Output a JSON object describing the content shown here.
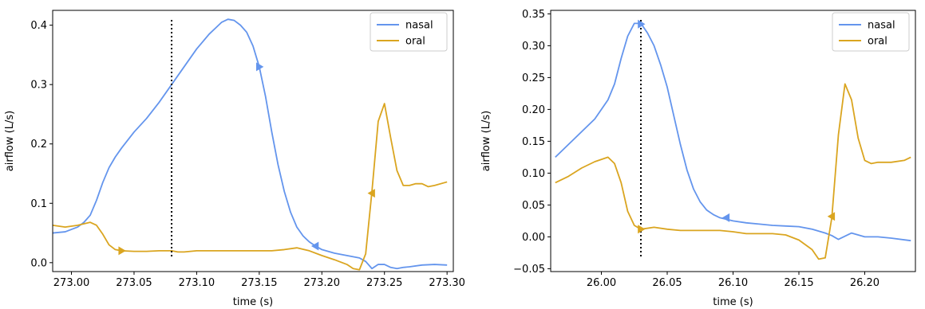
{
  "colors": {
    "nasal": "#6495ED",
    "oral": "#DAA520"
  },
  "chart_data": [
    {
      "type": "line",
      "xlabel": "time (s)",
      "ylabel": "airflow (L/s)",
      "xlim": [
        272.985,
        273.305
      ],
      "ylim": [
        -0.015,
        0.425
      ],
      "xticks": [
        273.0,
        273.05,
        273.1,
        273.15,
        273.2,
        273.25,
        273.3
      ],
      "xtick_labels": [
        "273.00",
        "273.05",
        "273.10",
        "273.15",
        "273.20",
        "273.25",
        "273.30"
      ],
      "yticks": [
        0.0,
        0.1,
        0.2,
        0.3,
        0.4
      ],
      "ytick_labels": [
        "0.0",
        "0.1",
        "0.2",
        "0.3",
        "0.4"
      ],
      "vline_x": 273.08,
      "legend": "top-right",
      "series": [
        {
          "name": "nasal",
          "color": "#6495ED",
          "x": [
            272.985,
            272.995,
            273.005,
            273.01,
            273.015,
            273.02,
            273.025,
            273.03,
            273.035,
            273.04,
            273.05,
            273.06,
            273.07,
            273.08,
            273.09,
            273.1,
            273.11,
            273.115,
            273.12,
            273.125,
            273.13,
            273.135,
            273.14,
            273.145,
            273.15,
            273.155,
            273.16,
            273.165,
            273.17,
            273.175,
            273.18,
            273.185,
            273.19,
            273.195,
            273.2,
            273.21,
            273.22,
            273.23,
            273.235,
            273.24,
            273.245,
            273.25,
            273.255,
            273.26,
            273.265,
            273.27,
            273.28,
            273.29,
            273.3
          ],
          "y": [
            0.05,
            0.052,
            0.06,
            0.068,
            0.08,
            0.105,
            0.135,
            0.16,
            0.178,
            0.193,
            0.22,
            0.243,
            0.27,
            0.3,
            0.33,
            0.36,
            0.385,
            0.395,
            0.405,
            0.41,
            0.408,
            0.4,
            0.388,
            0.365,
            0.33,
            0.28,
            0.22,
            0.165,
            0.12,
            0.085,
            0.06,
            0.045,
            0.035,
            0.028,
            0.022,
            0.016,
            0.012,
            0.008,
            0.002,
            -0.01,
            -0.003,
            -0.003,
            -0.008,
            -0.01,
            -0.008,
            -0.007,
            -0.004,
            -0.003,
            -0.004
          ],
          "markers": [
            {
              "x": 273.15,
              "y": 0.33,
              "dir": "right"
            },
            {
              "x": 273.195,
              "y": 0.028,
              "dir": "left"
            }
          ]
        },
        {
          "name": "oral",
          "color": "#DAA520",
          "x": [
            272.985,
            272.995,
            273.005,
            273.015,
            273.02,
            273.025,
            273.03,
            273.035,
            273.04,
            273.05,
            273.06,
            273.07,
            273.08,
            273.085,
            273.09,
            273.1,
            273.11,
            273.12,
            273.13,
            273.14,
            273.15,
            273.16,
            273.17,
            273.18,
            273.19,
            273.2,
            273.21,
            273.22,
            273.225,
            273.23,
            273.235,
            273.24,
            273.245,
            273.25,
            273.255,
            273.26,
            273.265,
            273.27,
            273.275,
            273.28,
            273.285,
            273.29,
            273.3
          ],
          "y": [
            0.063,
            0.06,
            0.063,
            0.068,
            0.063,
            0.048,
            0.03,
            0.022,
            0.02,
            0.019,
            0.019,
            0.02,
            0.02,
            0.018,
            0.018,
            0.02,
            0.02,
            0.02,
            0.02,
            0.02,
            0.02,
            0.02,
            0.022,
            0.025,
            0.02,
            0.012,
            0.005,
            -0.003,
            -0.01,
            -0.012,
            0.015,
            0.12,
            0.238,
            0.268,
            0.21,
            0.155,
            0.13,
            0.13,
            0.133,
            0.133,
            0.128,
            0.13,
            0.136
          ],
          "markers": [
            {
              "x": 273.04,
              "y": 0.02,
              "dir": "right"
            },
            {
              "x": 273.24,
              "y": 0.117,
              "dir": "left"
            }
          ]
        }
      ]
    },
    {
      "type": "line",
      "xlabel": "time (s)",
      "ylabel": "airflow (L/s)",
      "xlim": [
        25.9615,
        26.2385
      ],
      "ylim": [
        -0.0545,
        0.3555
      ],
      "xticks": [
        26.0,
        26.05,
        26.1,
        26.15,
        26.2
      ],
      "xtick_labels": [
        "26.00",
        "26.05",
        "26.10",
        "26.15",
        "26.20"
      ],
      "yticks": [
        -0.05,
        0.0,
        0.05,
        0.1,
        0.15,
        0.2,
        0.25,
        0.3,
        0.35
      ],
      "ytick_labels": [
        "−0.05",
        "0.00",
        "0.05",
        "0.10",
        "0.15",
        "0.20",
        "0.25",
        "0.30",
        "0.35"
      ],
      "vline_x": 26.03,
      "legend": "top-right",
      "series": [
        {
          "name": "nasal",
          "color": "#6495ED",
          "x": [
            25.965,
            25.975,
            25.985,
            25.995,
            26.005,
            26.01,
            26.015,
            26.02,
            26.025,
            26.03,
            26.035,
            26.04,
            26.045,
            26.05,
            26.055,
            26.06,
            26.065,
            26.07,
            26.075,
            26.08,
            26.085,
            26.09,
            26.1,
            26.11,
            26.12,
            26.13,
            26.14,
            26.15,
            26.16,
            26.17,
            26.175,
            26.18,
            26.19,
            26.2,
            26.21,
            26.22,
            26.235
          ],
          "y": [
            0.125,
            0.145,
            0.165,
            0.185,
            0.215,
            0.24,
            0.28,
            0.315,
            0.335,
            0.335,
            0.32,
            0.3,
            0.27,
            0.235,
            0.19,
            0.145,
            0.105,
            0.075,
            0.055,
            0.042,
            0.035,
            0.03,
            0.025,
            0.022,
            0.02,
            0.018,
            0.017,
            0.016,
            0.012,
            0.006,
            0.002,
            -0.004,
            0.006,
            0.0,
            0.0,
            -0.002,
            -0.006
          ],
          "markers": [
            {
              "x": 26.03,
              "y": 0.334,
              "dir": "right"
            },
            {
              "x": 26.095,
              "y": 0.03,
              "dir": "left"
            }
          ]
        },
        {
          "name": "oral",
          "color": "#DAA520",
          "x": [
            25.965,
            25.975,
            25.985,
            25.995,
            26.005,
            26.01,
            26.015,
            26.02,
            26.025,
            26.03,
            26.04,
            26.05,
            26.06,
            26.07,
            26.08,
            26.09,
            26.1,
            26.11,
            26.12,
            26.13,
            26.14,
            26.15,
            26.16,
            26.165,
            26.17,
            26.175,
            26.18,
            26.185,
            26.19,
            26.195,
            26.2,
            26.205,
            26.21,
            26.22,
            26.23,
            26.235
          ],
          "y": [
            0.085,
            0.095,
            0.108,
            0.118,
            0.125,
            0.115,
            0.085,
            0.04,
            0.018,
            0.012,
            0.015,
            0.012,
            0.01,
            0.01,
            0.01,
            0.01,
            0.008,
            0.005,
            0.005,
            0.005,
            0.003,
            -0.005,
            -0.02,
            -0.035,
            -0.033,
            0.03,
            0.16,
            0.24,
            0.215,
            0.155,
            0.12,
            0.115,
            0.117,
            0.117,
            0.12,
            0.125
          ],
          "markers": [
            {
              "x": 26.03,
              "y": 0.012,
              "dir": "right"
            },
            {
              "x": 26.175,
              "y": 0.032,
              "dir": "left"
            }
          ]
        }
      ]
    }
  ]
}
